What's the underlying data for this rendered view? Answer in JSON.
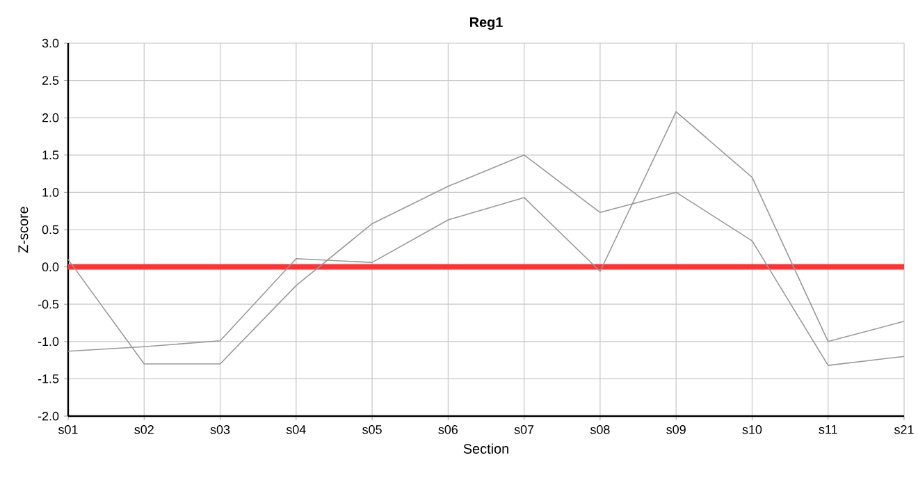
{
  "chart_data": {
    "type": "line",
    "title": "Reg1",
    "xlabel": "Section",
    "ylabel": "Z-score",
    "categories": [
      "s01",
      "s02",
      "s03",
      "s04",
      "s05",
      "s06",
      "s07",
      "s08",
      "s09",
      "s10",
      "s11",
      "s21"
    ],
    "series": [
      {
        "color": "#999999",
        "values": [
          -1.13,
          -1.07,
          -0.99,
          0.11,
          0.06,
          0.63,
          0.93,
          -0.06,
          2.08,
          1.2,
          -1.0,
          -0.73
        ]
      },
      {
        "color": "#999999",
        "values": [
          0.1,
          -1.3,
          -1.3,
          -0.25,
          0.58,
          1.08,
          1.5,
          0.73,
          1.0,
          0.35,
          -1.32,
          -1.2
        ]
      }
    ],
    "ylim": [
      -2,
      3
    ],
    "yticks": [
      {
        "value": -2,
        "label": "-2.0"
      },
      {
        "value": -1.5,
        "label": "-1.5"
      },
      {
        "value": -1,
        "label": "-1.0"
      },
      {
        "value": -0.5,
        "label": "-0.5"
      },
      {
        "value": 0,
        "label": "0.0"
      },
      {
        "value": 0.5,
        "label": "0.5"
      },
      {
        "value": 1,
        "label": "1.0"
      },
      {
        "value": 1.5,
        "label": "1.5"
      },
      {
        "value": 2,
        "label": "2.0"
      },
      {
        "value": 2.5,
        "label": "2.5"
      },
      {
        "value": 3,
        "label": "3.0"
      }
    ],
    "ref_lines": [
      {
        "axis": "y",
        "value": 0,
        "color": "#ff3333"
      }
    ],
    "grid": true,
    "marker": "none",
    "line_style": "solid"
  }
}
